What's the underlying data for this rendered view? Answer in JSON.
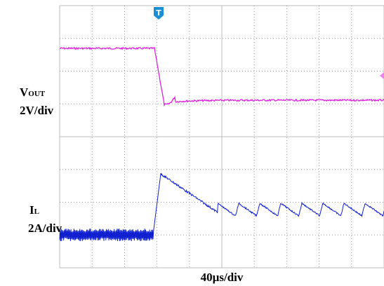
{
  "channels": [
    {
      "name": "V",
      "subscript": "OUT",
      "scale": "2V/div"
    },
    {
      "name": "I",
      "subscript": "L",
      "scale": "2A/div"
    }
  ],
  "timebase": "40µs/div",
  "trigger": "T"
}
